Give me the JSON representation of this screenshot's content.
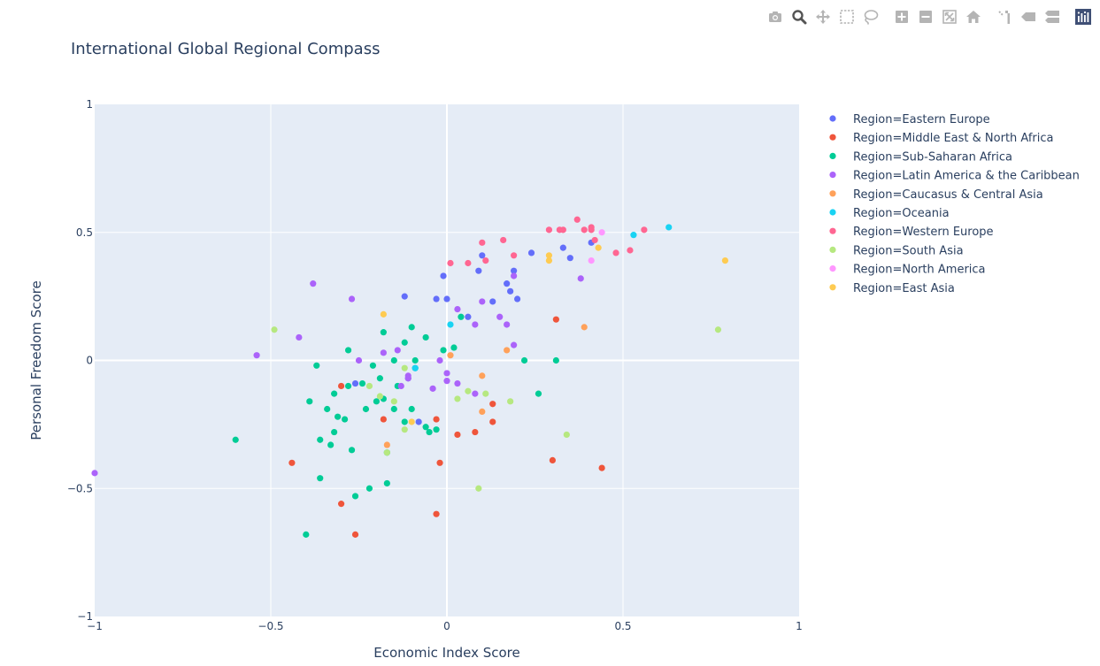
{
  "modebar": {
    "colors": {
      "icon": "#b4b4b4",
      "icon_active": "#555555",
      "logo": "#3f4f75"
    },
    "buttons": [
      {
        "name": "camera-icon",
        "active": false
      },
      {
        "name": "zoom-icon",
        "active": true
      },
      {
        "name": "pan-icon",
        "active": false
      },
      {
        "name": "box-select-icon",
        "active": false
      },
      {
        "name": "lasso-select-icon",
        "active": false
      },
      {
        "name": "zoom-in-icon",
        "active": false,
        "gap_before": true
      },
      {
        "name": "zoom-out-icon",
        "active": false
      },
      {
        "name": "autoscale-icon",
        "active": false
      },
      {
        "name": "reset-axes-icon",
        "active": false
      },
      {
        "name": "spike-lines-icon",
        "active": false,
        "gap_before": true
      },
      {
        "name": "hover-closest-icon",
        "active": false
      },
      {
        "name": "hover-compare-icon",
        "active": false
      },
      {
        "name": "plotly-logo-icon",
        "active": false,
        "gap_before": true
      }
    ]
  },
  "chart_data": {
    "type": "scatter",
    "title": "International Global Regional Compass",
    "xlabel": "Economic Index Score",
    "ylabel": "Personal Freedom Score",
    "xlim": [
      -1,
      1
    ],
    "ylim": [
      -1,
      1
    ],
    "xticks": [
      -1,
      -0.5,
      0,
      0.5,
      1
    ],
    "yticks": [
      -1,
      -0.5,
      0,
      0.5,
      1
    ],
    "xtick_labels": [
      "−1",
      "−0.5",
      "0",
      "0.5",
      "1"
    ],
    "ytick_labels": [
      "−1",
      "−0.5",
      "0",
      "0.5",
      "1"
    ],
    "grid": true,
    "legend_position": "right",
    "colors": {
      "plot_bg": "#e5ecf6",
      "grid": "#ffffff",
      "text": "#2a3f5f"
    },
    "series": [
      {
        "name": "Region=Eastern Europe",
        "color": "#636efa",
        "x": [
          -0.12,
          -0.03,
          0.0,
          -0.01,
          0.09,
          0.1,
          0.17,
          0.18,
          0.19,
          0.2,
          0.13,
          0.24,
          0.33,
          0.35,
          0.41,
          0.06,
          -0.26,
          -0.11,
          -0.08
        ],
        "y": [
          0.25,
          0.24,
          0.24,
          0.33,
          0.35,
          0.41,
          0.3,
          0.27,
          0.35,
          0.24,
          0.23,
          0.42,
          0.44,
          0.4,
          0.46,
          0.17,
          -0.09,
          -0.07,
          -0.24
        ]
      },
      {
        "name": "Region=Middle East & North Africa",
        "color": "#ef553b",
        "x": [
          -0.3,
          -0.18,
          -0.03,
          0.03,
          0.08,
          0.13,
          0.13,
          0.31,
          0.3,
          0.44,
          -0.44,
          -0.3,
          -0.26,
          -0.03,
          -0.02
        ],
        "y": [
          -0.1,
          -0.23,
          -0.23,
          -0.29,
          -0.28,
          -0.24,
          -0.17,
          0.16,
          -0.39,
          -0.42,
          -0.4,
          -0.56,
          -0.68,
          -0.6,
          -0.4
        ]
      },
      {
        "name": "Region=Sub-Saharan Africa",
        "color": "#00cc96",
        "x": [
          -0.6,
          -0.4,
          -0.39,
          -0.37,
          -0.36,
          -0.36,
          -0.34,
          -0.33,
          -0.32,
          -0.32,
          -0.31,
          -0.29,
          -0.28,
          -0.28,
          -0.27,
          -0.26,
          -0.24,
          -0.23,
          -0.22,
          -0.21,
          -0.2,
          -0.19,
          -0.18,
          -0.18,
          -0.17,
          -0.17,
          -0.15,
          -0.15,
          -0.14,
          -0.12,
          -0.12,
          -0.1,
          -0.1,
          -0.09,
          -0.09,
          -0.06,
          -0.06,
          -0.05,
          -0.03,
          -0.01,
          0.02,
          0.04,
          0.22,
          0.26,
          0.31
        ],
        "y": [
          -0.31,
          -0.68,
          -0.16,
          -0.02,
          -0.46,
          -0.31,
          -0.19,
          -0.33,
          -0.28,
          -0.13,
          -0.22,
          -0.23,
          0.04,
          -0.1,
          -0.35,
          -0.53,
          -0.09,
          -0.19,
          -0.5,
          -0.02,
          -0.16,
          -0.07,
          0.11,
          -0.15,
          -0.36,
          -0.48,
          0.0,
          -0.19,
          -0.1,
          0.07,
          -0.24,
          0.13,
          -0.19,
          -0.03,
          0.0,
          0.09,
          -0.26,
          -0.28,
          -0.27,
          0.04,
          0.05,
          0.17,
          0.0,
          -0.13,
          0.0
        ]
      },
      {
        "name": "Region=Latin America & the Caribbean",
        "color": "#ab63fa",
        "x": [
          -1.0,
          -0.54,
          -0.42,
          -0.38,
          -0.27,
          -0.25,
          -0.18,
          -0.14,
          -0.13,
          -0.11,
          -0.11,
          -0.04,
          -0.02,
          0.0,
          0.0,
          0.03,
          0.03,
          0.08,
          0.08,
          0.1,
          0.15,
          0.17,
          0.19,
          0.19,
          0.38
        ],
        "y": [
          -0.44,
          0.02,
          0.09,
          0.3,
          0.24,
          0.0,
          0.03,
          0.04,
          -0.1,
          -0.06,
          -0.07,
          -0.11,
          0.0,
          -0.08,
          -0.05,
          -0.09,
          0.2,
          0.14,
          -0.13,
          0.23,
          0.17,
          0.14,
          0.33,
          0.06,
          0.32
        ]
      },
      {
        "name": "Region=Caucasus & Central Asia",
        "color": "#ffa15a",
        "x": [
          0.01,
          0.1,
          0.1,
          0.17,
          0.39,
          -0.17
        ],
        "y": [
          0.02,
          -0.06,
          -0.2,
          0.04,
          0.13,
          -0.33
        ]
      },
      {
        "name": "Region=Oceania",
        "color": "#19d3f3",
        "x": [
          -0.09,
          0.01,
          0.53,
          0.63
        ],
        "y": [
          -0.03,
          0.14,
          0.49,
          0.52
        ]
      },
      {
        "name": "Region=Western Europe",
        "color": "#ff6692",
        "x": [
          0.01,
          0.06,
          0.1,
          0.11,
          0.16,
          0.19,
          0.29,
          0.32,
          0.33,
          0.37,
          0.39,
          0.41,
          0.41,
          0.42,
          0.48,
          0.52,
          0.56
        ],
        "y": [
          0.38,
          0.38,
          0.46,
          0.39,
          0.47,
          0.41,
          0.51,
          0.51,
          0.51,
          0.55,
          0.51,
          0.51,
          0.52,
          0.47,
          0.42,
          0.43,
          0.51
        ]
      },
      {
        "name": "Region=South Asia",
        "color": "#b6e880",
        "x": [
          -0.49,
          -0.22,
          -0.19,
          -0.17,
          -0.15,
          -0.12,
          -0.12,
          0.03,
          0.06,
          0.09,
          0.11,
          0.18,
          0.34,
          0.77
        ],
        "y": [
          0.12,
          -0.1,
          -0.14,
          -0.36,
          -0.16,
          -0.03,
          -0.27,
          -0.15,
          -0.12,
          -0.5,
          -0.13,
          -0.16,
          -0.29,
          0.12
        ]
      },
      {
        "name": "Region=North America",
        "color": "#ff97ff",
        "x": [
          0.41,
          0.44
        ],
        "y": [
          0.39,
          0.5
        ]
      },
      {
        "name": "Region=East Asia",
        "color": "#fecb52",
        "x": [
          -0.18,
          -0.1,
          0.29,
          0.29,
          0.43,
          0.79
        ],
        "y": [
          0.18,
          -0.24,
          0.39,
          0.41,
          0.44,
          0.39
        ]
      }
    ]
  }
}
